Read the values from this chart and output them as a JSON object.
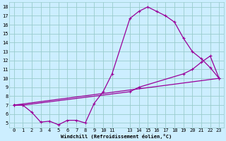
{
  "xlabel": "Windchill (Refroidissement éolien,°C)",
  "bg_color": "#cceeff",
  "grid_color": "#99cccc",
  "line_color": "#990099",
  "xlim": [
    -0.5,
    23.5
  ],
  "ylim": [
    4.5,
    18.5
  ],
  "yticks": [
    5,
    6,
    7,
    8,
    9,
    10,
    11,
    12,
    13,
    14,
    15,
    16,
    17,
    18
  ],
  "xticks": [
    0,
    1,
    2,
    3,
    4,
    5,
    6,
    7,
    8,
    9,
    10,
    11,
    13,
    14,
    15,
    16,
    17,
    18,
    19,
    20,
    21,
    22,
    23
  ],
  "xtick_labels": [
    "0",
    "1",
    "2",
    "3",
    "4",
    "5",
    "6",
    "7",
    "8",
    "9",
    "10",
    "11",
    "13",
    "14",
    "15",
    "16",
    "17",
    "18",
    "19",
    "20",
    "21",
    "22",
    "23"
  ],
  "line1_x": [
    0,
    1,
    2,
    3,
    4,
    5,
    6,
    7,
    8,
    9,
    10,
    11,
    13,
    14,
    15,
    16,
    17,
    18,
    19,
    20,
    21,
    22,
    23
  ],
  "line1_y": [
    7.0,
    7.0,
    6.2,
    5.1,
    5.2,
    4.8,
    5.3,
    5.3,
    5.0,
    7.2,
    8.5,
    10.5,
    16.7,
    17.5,
    18.0,
    17.5,
    17.0,
    16.3,
    14.5,
    13.0,
    12.2,
    11.2,
    10.0
  ],
  "line2_x": [
    0,
    1,
    13,
    14,
    19,
    20,
    21,
    22,
    23
  ],
  "line2_y": [
    7.0,
    7.0,
    8.5,
    9.0,
    10.5,
    11.0,
    11.8,
    12.5,
    10.0
  ],
  "line3_x": [
    0,
    23
  ],
  "line3_y": [
    7.0,
    10.0
  ]
}
